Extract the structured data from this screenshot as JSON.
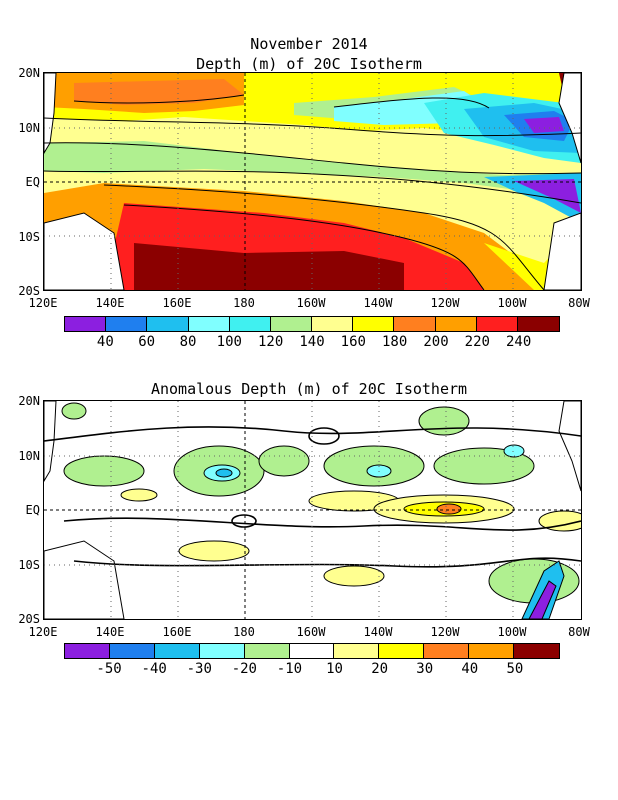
{
  "header": {
    "title_line1": "November 2014"
  },
  "top_map": {
    "title": "Depth (m) of 20C Isotherm",
    "lat_labels": [
      "20N",
      "10N",
      "EQ",
      "10S",
      "20S"
    ],
    "lon_labels": [
      "120E",
      "140E",
      "160E",
      "180",
      "160W",
      "140W",
      "120W",
      "100W",
      "80W"
    ],
    "colorbar": {
      "colors": [
        "#8c1fe0",
        "#1f7fef",
        "#1fbfef",
        "#80ffff",
        "#40f0f0",
        "#b0f090",
        "#ffff90",
        "#ffff00",
        "#ff7f1f",
        "#ff9f00",
        "#ff1f1f",
        "#8b0000"
      ],
      "labels": [
        "40",
        "60",
        "80",
        "100",
        "120",
        "140",
        "160",
        "180",
        "200",
        "220",
        "240"
      ]
    }
  },
  "bottom_map": {
    "title": "Anomalous Depth (m) of 20C Isotherm",
    "lat_labels": [
      "20N",
      "10N",
      "EQ",
      "10S",
      "20S"
    ],
    "lon_labels": [
      "120E",
      "140E",
      "160E",
      "180",
      "160W",
      "140W",
      "120W",
      "100W",
      "80W"
    ],
    "colorbar": {
      "colors": [
        "#8c1fe0",
        "#1f7fef",
        "#1fbfef",
        "#80ffff",
        "#b0f090",
        "#ffffff",
        "#ffff90",
        "#ffff00",
        "#ff7f1f",
        "#ff9f00",
        "#8b0000"
      ],
      "labels": [
        "-50",
        "-40",
        "-30",
        "-20",
        "-10",
        "10",
        "20",
        "30",
        "40",
        "50"
      ]
    }
  }
}
